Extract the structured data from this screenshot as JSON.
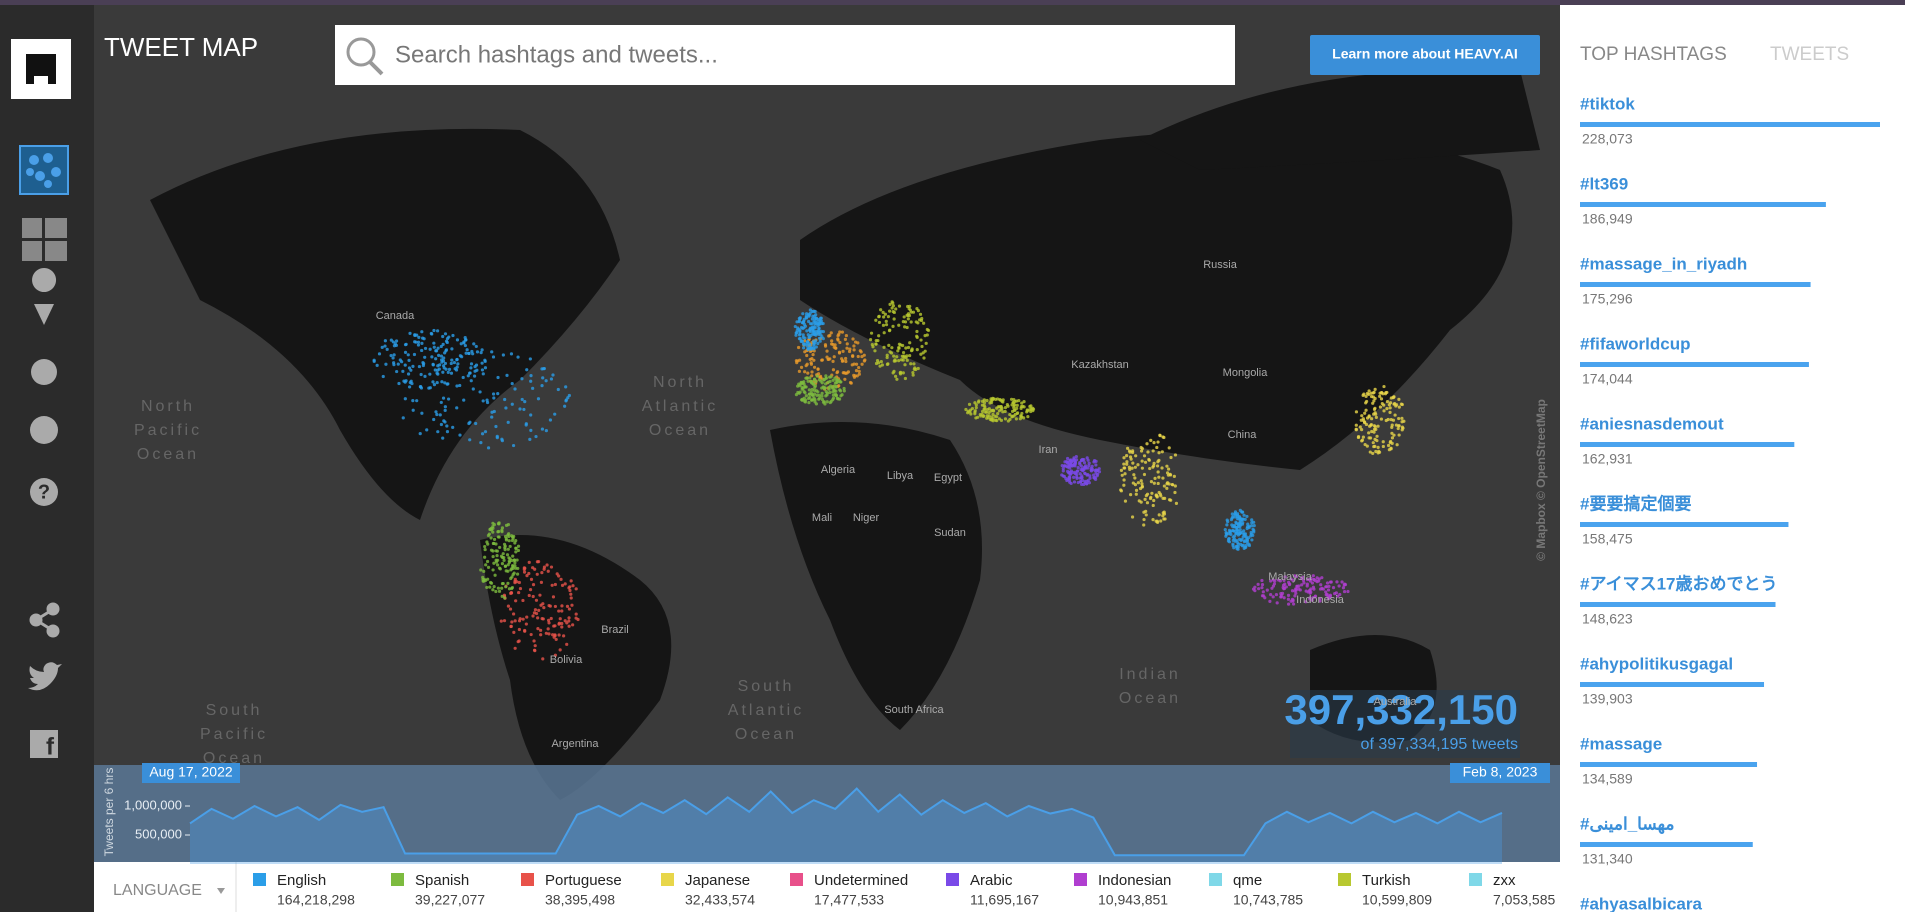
{
  "header": {
    "title": "TWEET MAP",
    "search_placeholder": "Search hashtags and tweets...",
    "button": "Learn more about HEAVY.AI"
  },
  "tabs": [
    "TOP HASHTAGS",
    "TWEETS"
  ],
  "hashtags": [
    {
      "tag": "#tiktok",
      "count": 228073,
      "count_label": "228,073"
    },
    {
      "tag": "#lt369",
      "count": 186949,
      "count_label": "186,949"
    },
    {
      "tag": "#massage_in_riyadh",
      "count": 175296,
      "count_label": "175,296"
    },
    {
      "tag": "#fifaworldcup",
      "count": 174044,
      "count_label": "174,044"
    },
    {
      "tag": "#aniesnasdemout",
      "count": 162931,
      "count_label": "162,931"
    },
    {
      "tag": "#要要搞定個要",
      "count": 158475,
      "count_label": "158,475"
    },
    {
      "tag": "#アイマス17歳おめでとう",
      "count": 148623,
      "count_label": "148,623"
    },
    {
      "tag": "#ahypolitikusgagal",
      "count": 139903,
      "count_label": "139,903"
    },
    {
      "tag": "#massage",
      "count": 134589,
      "count_label": "134,589"
    },
    {
      "tag": "#مهسا_امینی",
      "count": 131340,
      "count_label": "131,340"
    },
    {
      "tag": "#ahyasalbicara"
    }
  ],
  "map": {
    "labels": [
      "Canada",
      "Russia",
      "Kazakhstan",
      "Mongolia",
      "China",
      "Iran",
      "Algeria",
      "Libya",
      "Egypt",
      "Mali",
      "Niger",
      "Sudan",
      "Brazil",
      "Bolivia",
      "Argentina",
      "South Africa",
      "Australia",
      "Indonesia",
      "Malaysia"
    ],
    "oceans": [
      [
        "North",
        "Pacific",
        "Ocean"
      ],
      [
        "North",
        "Atlantic",
        "Ocean"
      ],
      [
        "South",
        "Atlantic",
        "Ocean"
      ],
      [
        "Indian",
        "Ocean"
      ],
      [
        "South",
        "Pacific",
        "Ocean"
      ]
    ],
    "attribution": "© Mapbox  © OpenStreetMap"
  },
  "counter": {
    "shown": "397,332,150",
    "total": "of 397,334,195 tweets"
  },
  "chart_data": {
    "type": "line",
    "ylabel": "Tweets per 6 hrs",
    "start_label": "Aug 17, 2022",
    "end_label": "Feb 8, 2023",
    "color": "#4a9fe8",
    "ylim": [
      0,
      1500000
    ],
    "yticks": [
      {
        "value": 500000,
        "label": "500,000"
      },
      {
        "value": 1000000,
        "label": "1,000,000"
      }
    ],
    "values": [
      700000,
      950000,
      780000,
      1000000,
      820000,
      980000,
      760000,
      1020000,
      900000,
      980000,
      180000,
      180000,
      180000,
      180000,
      180000,
      180000,
      180000,
      180000,
      850000,
      1000000,
      820000,
      1050000,
      880000,
      1100000,
      860000,
      1150000,
      900000,
      1250000,
      880000,
      1100000,
      950000,
      1300000,
      900000,
      1200000,
      850000,
      1100000,
      880000,
      1050000,
      820000,
      1000000,
      870000,
      950000,
      800000,
      150000,
      150000,
      150000,
      150000,
      150000,
      150000,
      150000,
      700000,
      900000,
      720000,
      880000,
      700000,
      900000,
      720000,
      880000,
      700000,
      900000,
      720000,
      880000
    ]
  },
  "legend": {
    "title": "LANGUAGE",
    "items": [
      {
        "name": "English",
        "count": "164,218,298",
        "color": "#2b9ee8"
      },
      {
        "name": "Spanish",
        "count": "39,227,077",
        "color": "#7dbb3f"
      },
      {
        "name": "Portuguese",
        "count": "38,395,498",
        "color": "#e8524a"
      },
      {
        "name": "Japanese",
        "count": "32,433,574",
        "color": "#e8d64a"
      },
      {
        "name": "Undetermined",
        "count": "17,477,533",
        "color": "#e8508a"
      },
      {
        "name": "Arabic",
        "count": "11,695,167",
        "color": "#7a4ae8"
      },
      {
        "name": "Indonesian",
        "count": "10,943,851",
        "color": "#b03ed0"
      },
      {
        "name": "qme",
        "count": "10,743,785",
        "color": "#7fd8e8"
      },
      {
        "name": "Turkish",
        "count": "10,599,809",
        "color": "#b8c830"
      },
      {
        "name": "zxx",
        "count": "7,053,585",
        "color": "#7fd8e8"
      }
    ]
  }
}
